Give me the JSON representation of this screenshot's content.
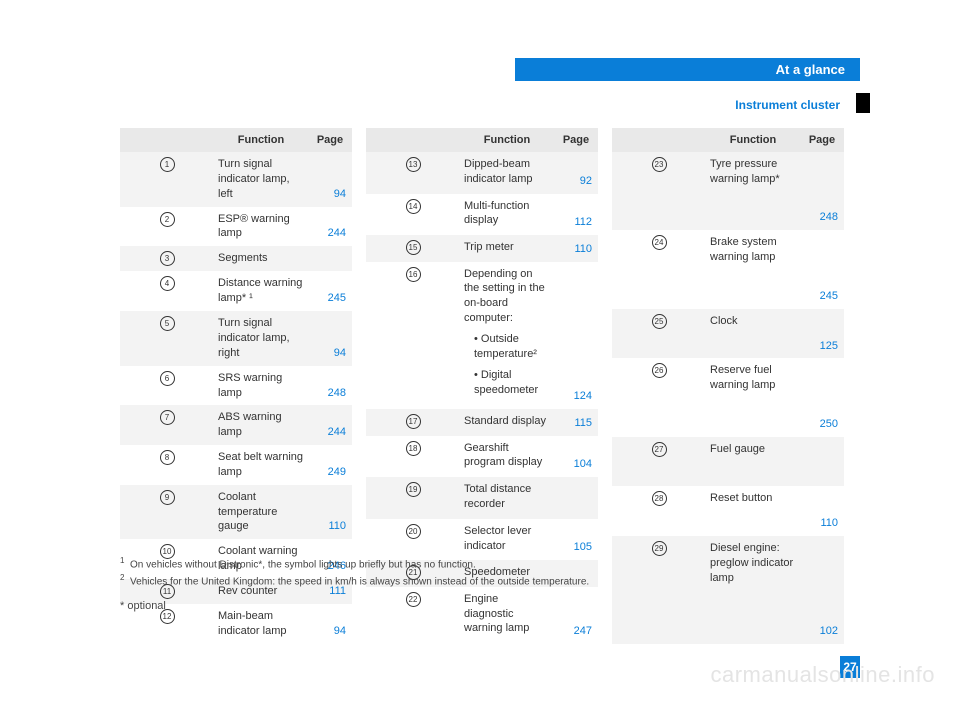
{
  "header": {
    "title": "At a glance",
    "subtitle": "Instrument cluster",
    "page_number": "27"
  },
  "column_headers": {
    "function": "Function",
    "page": "Page"
  },
  "tables": [
    {
      "rows": [
        {
          "n": "1",
          "text": "Turn signal indicator lamp, left",
          "page": "94"
        },
        {
          "n": "2",
          "text": "ESP® warning lamp",
          "page": "244"
        },
        {
          "n": "3",
          "text": "Segments",
          "page": ""
        },
        {
          "n": "4",
          "text": "Distance warning lamp* ¹",
          "page": "245"
        },
        {
          "n": "5",
          "text": "Turn signal indicator lamp, right",
          "page": "94"
        },
        {
          "n": "6",
          "text": "SRS warning lamp",
          "page": "248"
        },
        {
          "n": "7",
          "text": "ABS warning lamp",
          "page": "244"
        },
        {
          "n": "8",
          "text": "Seat belt warning lamp",
          "page": "249"
        },
        {
          "n": "9",
          "text": "Coolant temperature gauge",
          "page": "110"
        },
        {
          "n": "10",
          "text": "Coolant warning lamp",
          "page": "246"
        },
        {
          "n": "11",
          "text": "Rev counter",
          "page": "111"
        },
        {
          "n": "12",
          "text": "Main-beam indicator lamp",
          "page": "94"
        }
      ]
    },
    {
      "rows": [
        {
          "n": "13",
          "text": "Dipped-beam indicator lamp",
          "page": "92"
        },
        {
          "n": "14",
          "text": "Multi-function display",
          "page": "112"
        },
        {
          "n": "15",
          "text": "Trip meter",
          "page": "110"
        },
        {
          "n": "16",
          "html": "Depending on the setting in the on-board computer:<span class=\"sub-bullet\">• Outside temperature²</span><span class=\"sub-bullet\">• Digital speedometer</span>",
          "page": "124"
        },
        {
          "n": "17",
          "text": "Standard display",
          "page": "115"
        },
        {
          "n": "18",
          "text": "Gearshift program display",
          "page": "104"
        },
        {
          "n": "19",
          "text": "Total distance recorder",
          "page": ""
        },
        {
          "n": "20",
          "text": "Selector lever indicator",
          "page": "105"
        },
        {
          "n": "21",
          "text": "Speedometer",
          "page": ""
        },
        {
          "n": "22",
          "text": "Engine diagnostic warning lamp",
          "page": "247"
        }
      ]
    },
    {
      "rows": [
        {
          "n": "23",
          "text": "Tyre pressure warning lamp*",
          "page": "248"
        },
        {
          "n": "24",
          "text": "Brake system warning lamp",
          "page": "245"
        },
        {
          "n": "25",
          "text": "Clock",
          "page": "125"
        },
        {
          "n": "26",
          "text": "Reserve fuel warning lamp",
          "page": "250"
        },
        {
          "n": "27",
          "text": "Fuel gauge",
          "page": ""
        },
        {
          "n": "28",
          "text": "Reset button",
          "page": "110"
        },
        {
          "n": "29",
          "text": "Diesel engine: preglow indicator lamp",
          "page": "102"
        }
      ]
    }
  ],
  "footnotes": {
    "note1": "On vehicles without Distronic*, the symbol lights up briefly but has no function.",
    "note2": "Vehicles for the United Kingdom: the speed in km/h is always shown instead of the outside temperature."
  },
  "optional_text": "* optional",
  "watermark": "carmanualsonline.info"
}
